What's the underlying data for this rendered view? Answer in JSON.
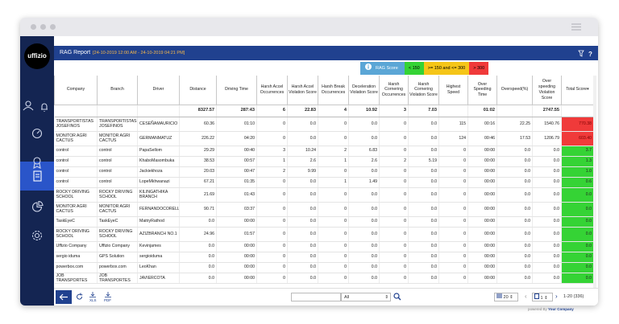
{
  "header": {
    "title": "RAG Report",
    "date_range": "[24-10-2019 12:00 AM - 24-10-2019 04:21 PM]"
  },
  "logo": "uffizio",
  "legend": {
    "title": "RAG Score",
    "levels": [
      {
        "label": "< 150",
        "color": "#35d335"
      },
      {
        "label": ">= 150 and <= 300",
        "color": "#f5c518"
      },
      {
        "label": "> 300",
        "color": "#f03a3a"
      }
    ]
  },
  "table": {
    "columns": [
      "Company",
      "Branch",
      "Driver",
      "Distance",
      "Driving Time",
      "Harsh Accel Occurrences",
      "Harsh Accel Violation Score",
      "Harsh Break Occurrences",
      "Deceleration Violation Score",
      "Harsh Cornering Occurrences",
      "Harsh Cornering Violation Score",
      "Highest Speed",
      "Over Speeding Time",
      "Overspeed(%)",
      "Over speeding Violation Score",
      "Total Score"
    ],
    "sort_marker": "▾",
    "totals": [
      null,
      null,
      null,
      "8327.57",
      "287:43",
      "6",
      "22.83",
      "4",
      "10.92",
      "3",
      "7.03",
      null,
      "01:02",
      null,
      "2747.55",
      null
    ],
    "rows": [
      {
        "level": 2,
        "cells": [
          "TRANSPORTISTAS JOSEFINOS",
          "TRANSPORTISTAS JOSEFINOS",
          "CESEÑAMAURICIO",
          "60.36",
          "01:10",
          "0",
          "0.0",
          "0",
          "0.0",
          "0",
          "0.0",
          "115",
          "00:16",
          "22.25",
          "1540.76",
          "770.38"
        ]
      },
      {
        "level": 2,
        "cells": [
          "MONITOR AGRI CACTUS",
          "MONITOR AGRI CACTUS",
          "GERMANMATUZ",
          "226.22",
          "04:20",
          "0",
          "0.0",
          "0",
          "0.0",
          "0",
          "0.0",
          "124",
          "00:46",
          "17.53",
          "1206.79",
          "603.40"
        ]
      },
      {
        "level": 0,
        "cells": [
          "control",
          "control",
          "PapaSellom",
          "29.29",
          "00:40",
          "3",
          "10.24",
          "2",
          "6.83",
          "0",
          "0.0",
          "0",
          "00:00",
          "0.0",
          "0.0",
          "3.7"
        ]
      },
      {
        "level": 0,
        "cells": [
          "control",
          "control",
          "KhaboMasombuka",
          "38.53",
          "00:57",
          "1",
          "2.6",
          "1",
          "2.6",
          "2",
          "5.19",
          "0",
          "00:00",
          "0.0",
          "0.0",
          "1.3"
        ]
      },
      {
        "level": 0,
        "cells": [
          "control",
          "control",
          "Jackiekhoza",
          "20.03",
          "00:47",
          "2",
          "9.99",
          "0",
          "0.0",
          "0",
          "0.0",
          "0",
          "00:00",
          "0.0",
          "0.0",
          "1.0"
        ]
      },
      {
        "level": 0,
        "cells": [
          "control",
          "control",
          "LopeMkhwanazi",
          "67.21",
          "01:35",
          "0",
          "0.0",
          "1",
          "1.49",
          "0",
          "0.0",
          "0",
          "00:00",
          "0.0",
          "0.0",
          "0.6"
        ]
      },
      {
        "level": 0,
        "cells": [
          "ROCKY DRIVING SCHOOL",
          "ROCKY DRIVING SCHOOL",
          "KILINGATHIKA BRANCH",
          "21.69",
          "01:43",
          "0",
          "0.0",
          "0",
          "0.0",
          "0",
          "0.0",
          "0",
          "00:00",
          "0.0",
          "0.0",
          "0.0"
        ]
      },
      {
        "level": 0,
        "cells": [
          "MONITOR AGRI CACTUS",
          "MONITOR AGRI CACTUS",
          "FERNANDOCORELL",
          "90.71",
          "03:37",
          "0",
          "0.0",
          "0",
          "0.0",
          "0",
          "0.0",
          "0",
          "00:00",
          "0.0",
          "0.0",
          "0.0"
        ]
      },
      {
        "level": 0,
        "cells": [
          "TaskEyeC",
          "TaskEyeC",
          "MaitryRathod",
          "0.0",
          "00:00",
          "0",
          "0.0",
          "0",
          "0.0",
          "0",
          "0.0",
          "0",
          "00:00",
          "0.0",
          "0.0",
          "0.0"
        ]
      },
      {
        "level": 0,
        "cells": [
          "ROCKY DRIVING SCHOOL",
          "ROCKY DRIVING SCHOOL",
          "AZIZBRANCH NO.1",
          "24.96",
          "01:57",
          "0",
          "0.0",
          "0",
          "0.0",
          "0",
          "0.0",
          "0",
          "00:00",
          "0.0",
          "0.0",
          "0.0"
        ]
      },
      {
        "level": 0,
        "cells": [
          "Uffizio Company",
          "Uffizio Company",
          "Kevinjames",
          "0.0",
          "00:00",
          "0",
          "0.0",
          "0",
          "0.0",
          "0",
          "0.0",
          "0",
          "00:00",
          "0.0",
          "0.0",
          "0.0"
        ]
      },
      {
        "level": 0,
        "cells": [
          "sergio iduma",
          "GPS Solution",
          "sergioiduma",
          "0.0",
          "00:00",
          "0",
          "0.0",
          "0",
          "0.0",
          "0",
          "0.0",
          "0",
          "00:00",
          "0.0",
          "0.0",
          "0.0"
        ]
      },
      {
        "level": 0,
        "cells": [
          "powerbox.com",
          "powerbox.com",
          "LeoKhan",
          "0.0",
          "00:00",
          "0",
          "0.0",
          "0",
          "0.0",
          "0",
          "0.0",
          "0",
          "00:00",
          "0.0",
          "0.0",
          "0.0"
        ]
      },
      {
        "level": 0,
        "cells": [
          "JOB TRANSPORTES",
          "JOB TRANSPORTES",
          "JAVIERCOTA",
          "0.0",
          "00:00",
          "0",
          "0.0",
          "0",
          "0.0",
          "0",
          "0.0",
          "0",
          "00:00",
          "0.0",
          "0.0",
          "0.0"
        ]
      }
    ]
  },
  "footer": {
    "xls": "XLS",
    "pdf": "PDF",
    "filter": "All",
    "page_size": "20",
    "page": "1",
    "range": "1-20 (336)",
    "powered_by": "powered By",
    "company": "Your Company"
  }
}
